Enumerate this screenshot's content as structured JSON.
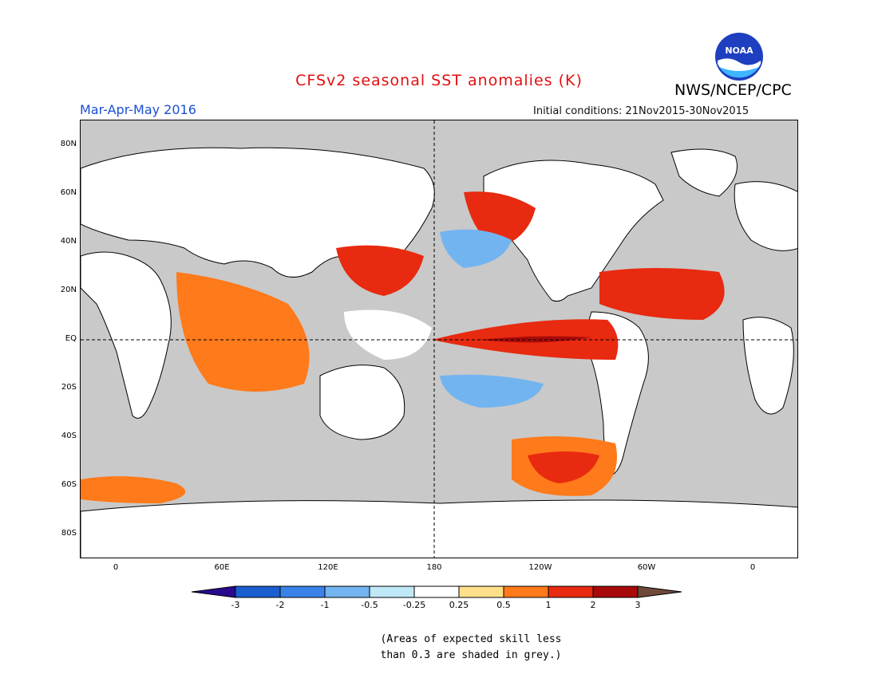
{
  "title": "CFSv2 seasonal SST anomalies (K)",
  "agency": "NWS/NCEP/CPC",
  "logo_text": "NOAA",
  "period": "Mar-Apr-May 2016",
  "initial_conditions": "Initial conditions: 21Nov2015-30Nov2015",
  "lat_labels": [
    "80N",
    "60N",
    "40N",
    "20N",
    "EQ",
    "20S",
    "40S",
    "60S",
    "80S"
  ],
  "lon_labels": [
    "0",
    "60E",
    "120E",
    "180",
    "120W",
    "60W",
    "0"
  ],
  "colorbar": {
    "labels": [
      "-3",
      "-2",
      "-1",
      "-0.5",
      "-0.25",
      "0.25",
      "0.5",
      "1",
      "2",
      "3"
    ],
    "colors": [
      "#2a0a8e",
      "#1a5fd0",
      "#3a82e8",
      "#72b4f0",
      "#bfe8f6",
      "#ffffff",
      "#ffe08a",
      "#ff7a1a",
      "#e82a10",
      "#a80a0a",
      "#6e4a3a"
    ]
  },
  "note_line1": "(Areas of expected skill less",
  "note_line2": "than 0.3 are shaded in grey.)",
  "colors": {
    "land": "#ffffff",
    "low_skill": "#c9c9c9",
    "title": "#e01010",
    "period": "#1a4fd6"
  }
}
